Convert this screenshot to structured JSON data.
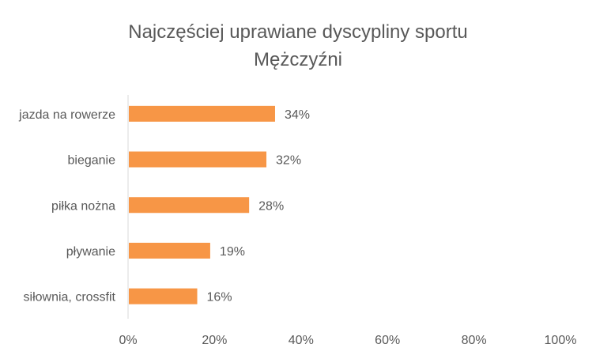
{
  "chart_data": {
    "type": "bar",
    "orientation": "horizontal",
    "title": "Najczęściej uprawiane dyscypliny sportu",
    "subtitle": "Mężczyźni",
    "categories": [
      "jazda na rowerze",
      "bieganie",
      "piłka nożna",
      "pływanie",
      "siłownia, crossfit"
    ],
    "values": [
      34,
      32,
      28,
      19,
      16
    ],
    "data_labels": [
      "34%",
      "32%",
      "28%",
      "19%",
      "16%"
    ],
    "xlim": [
      0,
      100
    ],
    "x_ticks": [
      0,
      20,
      40,
      60,
      80,
      100
    ],
    "x_tick_labels": [
      "0%",
      "20%",
      "40%",
      "60%",
      "80%",
      "100%"
    ],
    "grid": false,
    "legend": "none",
    "colors": {
      "bar": "#F79646",
      "text": "#595959",
      "axis": "#D9D9D9"
    }
  }
}
